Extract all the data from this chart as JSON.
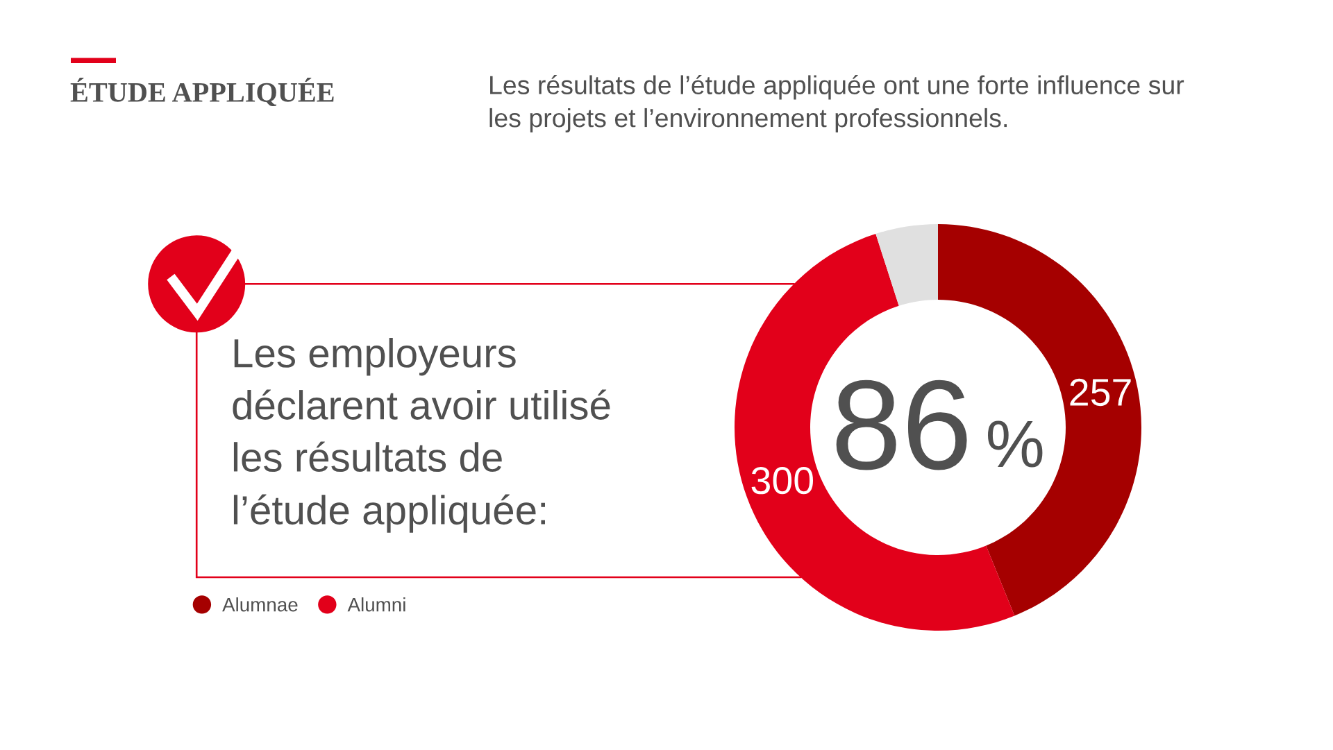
{
  "chart_data": {
    "type": "donut",
    "title": "ÉTUDE APPLIQUÉE",
    "subtitle": "Les résultats de l’étude appliquée ont une forte influence sur\nles projets et l’environnement professionnels.",
    "categories": [
      "Alumnae",
      "Alumni",
      null
    ],
    "values": [
      257,
      300,
      29
    ],
    "colors": [
      "#a50000",
      "#e2001a",
      "#e0e0e0"
    ],
    "value_labels": [
      "257",
      "300",
      null
    ],
    "legend": "bottom left",
    "annotations": [
      "Les employeurs\ndéclarent avoir utilisé\nles résultats de\nl’étude appliquée:",
      "86",
      "%"
    ]
  }
}
